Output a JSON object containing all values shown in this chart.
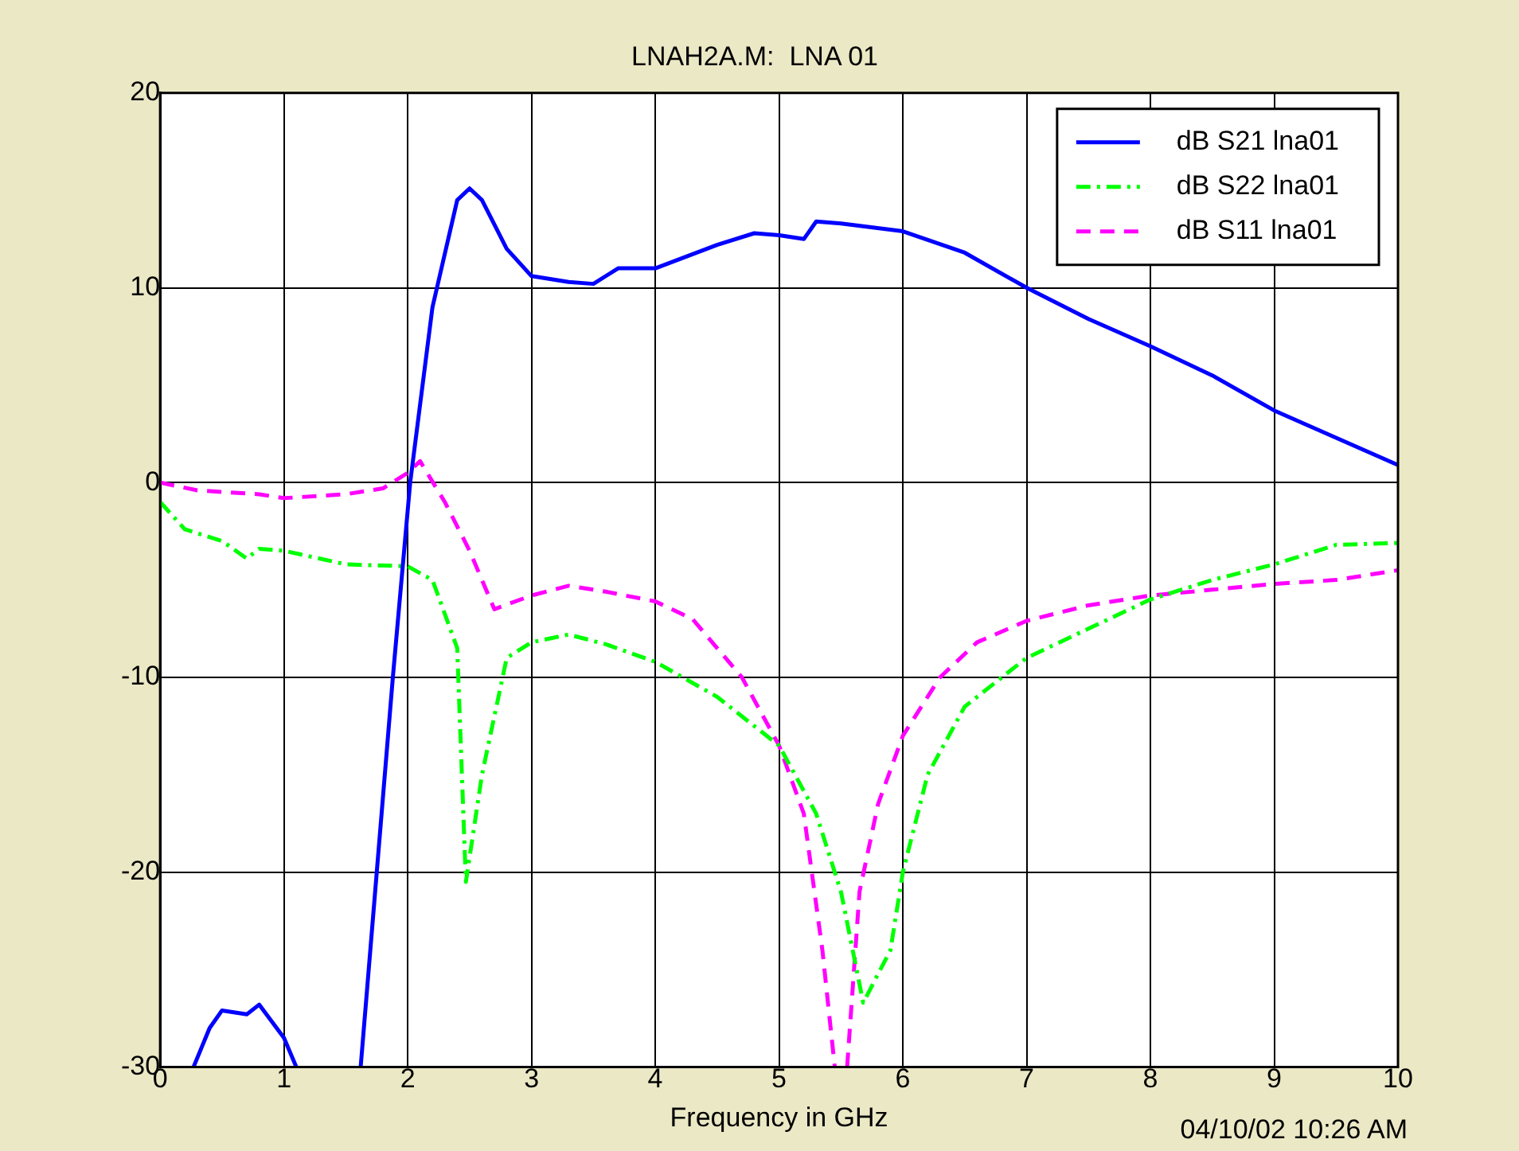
{
  "chart_data": {
    "type": "line",
    "title": "LNAH2A.M:  LNA 01",
    "xlabel": "Frequency in GHz",
    "annotations": [
      "04/10/02 10:26 AM"
    ],
    "xlim": [
      0,
      10
    ],
    "xticks": [
      0,
      1,
      2,
      3,
      4,
      5,
      6,
      7,
      8,
      9,
      10
    ],
    "ylim": [
      -30,
      20
    ],
    "yticks": [
      -30,
      -20,
      -10,
      0,
      10,
      20
    ],
    "grid": true,
    "legend": "top right",
    "marker": "none",
    "series": [
      {
        "name": "dB S21 lna01",
        "color": "#0000ff",
        "line_style": "solid",
        "x": [
          0.27,
          0.4,
          0.5,
          0.7,
          0.8,
          1.0,
          1.1,
          1.4,
          1.62,
          1.75,
          1.88,
          2.02,
          2.2,
          2.4,
          2.5,
          2.6,
          2.8,
          3.0,
          3.3,
          3.5,
          3.7,
          4.0,
          4.5,
          4.8,
          5.0,
          5.2,
          5.3,
          5.5,
          6.0,
          6.5,
          7.0,
          7.5,
          8.0,
          8.5,
          9.0,
          9.5,
          10.0
        ],
        "values": [
          -30,
          -28,
          -27.1,
          -27.3,
          -26.8,
          -28.5,
          -30,
          null,
          -30,
          -20,
          -10,
          0,
          9,
          14.5,
          15.1,
          14.5,
          12,
          10.6,
          10.3,
          10.2,
          11,
          11,
          12.2,
          12.8,
          12.7,
          12.5,
          13.4,
          13.3,
          12.9,
          11.8,
          10,
          8.4,
          7.0,
          5.5,
          3.7,
          2.3,
          0.9
        ]
      },
      {
        "name": "dB S22 lna01",
        "color": "#00ff00",
        "line_style": "dashdot",
        "x": [
          0,
          0.2,
          0.5,
          0.7,
          0.8,
          1.0,
          1.5,
          2.0,
          2.2,
          2.4,
          2.47,
          2.6,
          2.8,
          3.0,
          3.3,
          3.6,
          4.0,
          4.5,
          5.0,
          5.3,
          5.5,
          5.68,
          5.9,
          6.0,
          6.2,
          6.5,
          7.0,
          7.5,
          8.0,
          8.5,
          9.0,
          9.5,
          10.0
        ],
        "values": [
          -1,
          -2.4,
          -3.0,
          -3.9,
          -3.4,
          -3.5,
          -4.2,
          -4.3,
          -5,
          -8.5,
          -20.5,
          -15,
          -9,
          -8.2,
          -7.8,
          -8.3,
          -9.2,
          -11,
          -13.5,
          -17,
          -21,
          -26.7,
          -24,
          -20,
          -15,
          -11.5,
          -9,
          -7.5,
          -6,
          -5,
          -4.2,
          -3.2,
          -3.1
        ]
      },
      {
        "name": "dB S11 lna01",
        "color": "#ff00ff",
        "line_style": "dashed",
        "x": [
          0,
          0.3,
          0.8,
          1.0,
          1.5,
          1.8,
          2.0,
          2.1,
          2.3,
          2.5,
          2.7,
          3.0,
          3.3,
          3.6,
          4.0,
          4.3,
          4.7,
          5.0,
          5.2,
          5.35,
          5.45,
          5.5,
          5.55,
          5.65,
          5.8,
          6.0,
          6.3,
          6.6,
          7.0,
          7.5,
          8.0,
          8.5,
          9.0,
          9.5,
          10.0
        ],
        "values": [
          0,
          -0.4,
          -0.6,
          -0.8,
          -0.6,
          -0.3,
          0.5,
          1.1,
          -1,
          -3.5,
          -6.5,
          -5.8,
          -5.3,
          -5.6,
          -6.1,
          -7,
          -10,
          -13.5,
          -17,
          -24,
          -30,
          null,
          -30,
          -21,
          -16.5,
          -13,
          -10,
          -8.2,
          -7.1,
          -6.3,
          -5.8,
          -5.5,
          -5.2,
          -5,
          -4.5
        ]
      }
    ]
  }
}
